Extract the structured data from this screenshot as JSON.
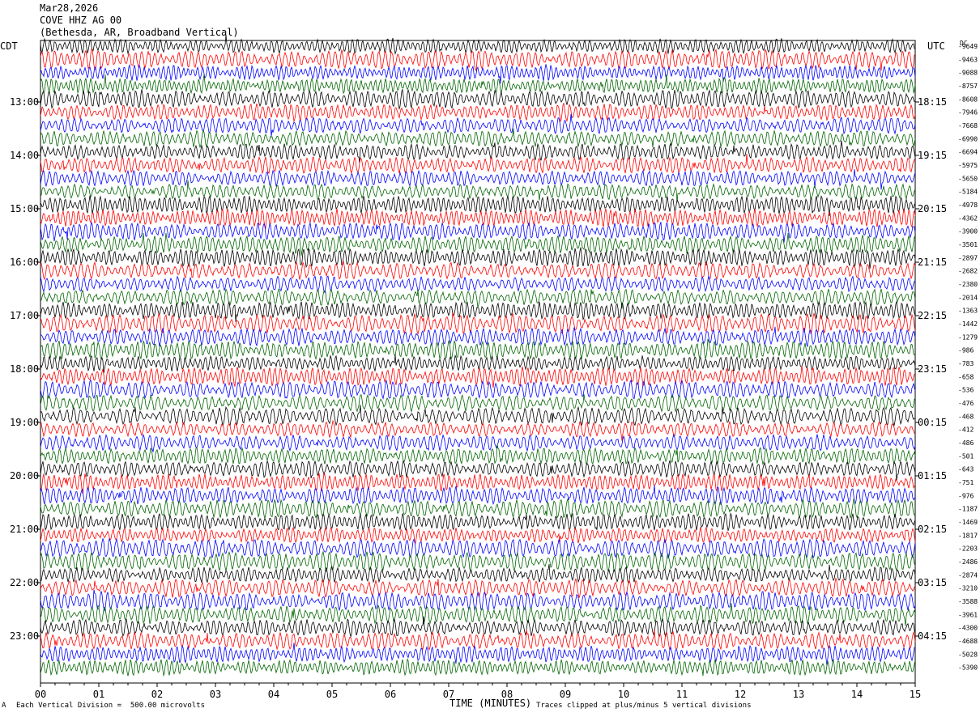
{
  "header": {
    "date": "Mar28,2026",
    "station": "COVE HHZ AG 00",
    "location": "(Bethesda, AR, Broadband Vertical)"
  },
  "footer": {
    "left": "Each Vertical Division =  500.00 microvolts",
    "right": "Traces clipped at plus/minus 5 vertical divisions",
    "mark": "A"
  },
  "chart_data": {
    "type": "line",
    "title": "COVE HHZ AG 00",
    "xlabel": "TIME (MINUTES)",
    "xlim": [
      0,
      15
    ],
    "x_ticks": [
      "00",
      "01",
      "02",
      "03",
      "04",
      "05",
      "06",
      "07",
      "08",
      "09",
      "10",
      "11",
      "12",
      "13",
      "14",
      "15"
    ],
    "left_axis_label": "CDT",
    "right_axis_label": "UTC",
    "left_ticks": [
      "13:00",
      "14:00",
      "15:00",
      "16:00",
      "17:00",
      "18:00",
      "19:00",
      "20:00",
      "21:00",
      "22:00",
      "23:00"
    ],
    "right_ticks": [
      "18:15",
      "19:15",
      "20:15",
      "21:15",
      "22:15",
      "23:15",
      "00:15",
      "01:15",
      "02:15",
      "03:15",
      "04:15"
    ],
    "trace_count": 48,
    "trace_colors": [
      "#000000",
      "#ff0000",
      "#0000ff",
      "#006400"
    ],
    "dc_label": "DC",
    "dc_offsets": [
      "-9649",
      "-9463",
      "-9088",
      "-8757",
      "-8608",
      "-7946",
      "-7668",
      "-6990",
      "-6694",
      "-5975",
      "-5650",
      "-5184",
      "-4978",
      "-4362",
      "-3900",
      "-3501",
      "-2897",
      "-2682",
      "-2380",
      "-2014",
      "-1363",
      "-1442",
      "-1279",
      "-986",
      "-783",
      "-658",
      "-536",
      "-476",
      "-468",
      "-412",
      "-486",
      "-501",
      "-643",
      "-751",
      "-976",
      "-1187",
      "-1469",
      "-1817",
      "-2203",
      "-2486",
      "-2874",
      "-3210",
      "-3588",
      "-3961",
      "-4300",
      "-4688",
      "-5028",
      "-5390"
    ],
    "amplitude_unit": "microvolts",
    "microvolts_per_division": 500.0,
    "clip_divisions": 5
  }
}
